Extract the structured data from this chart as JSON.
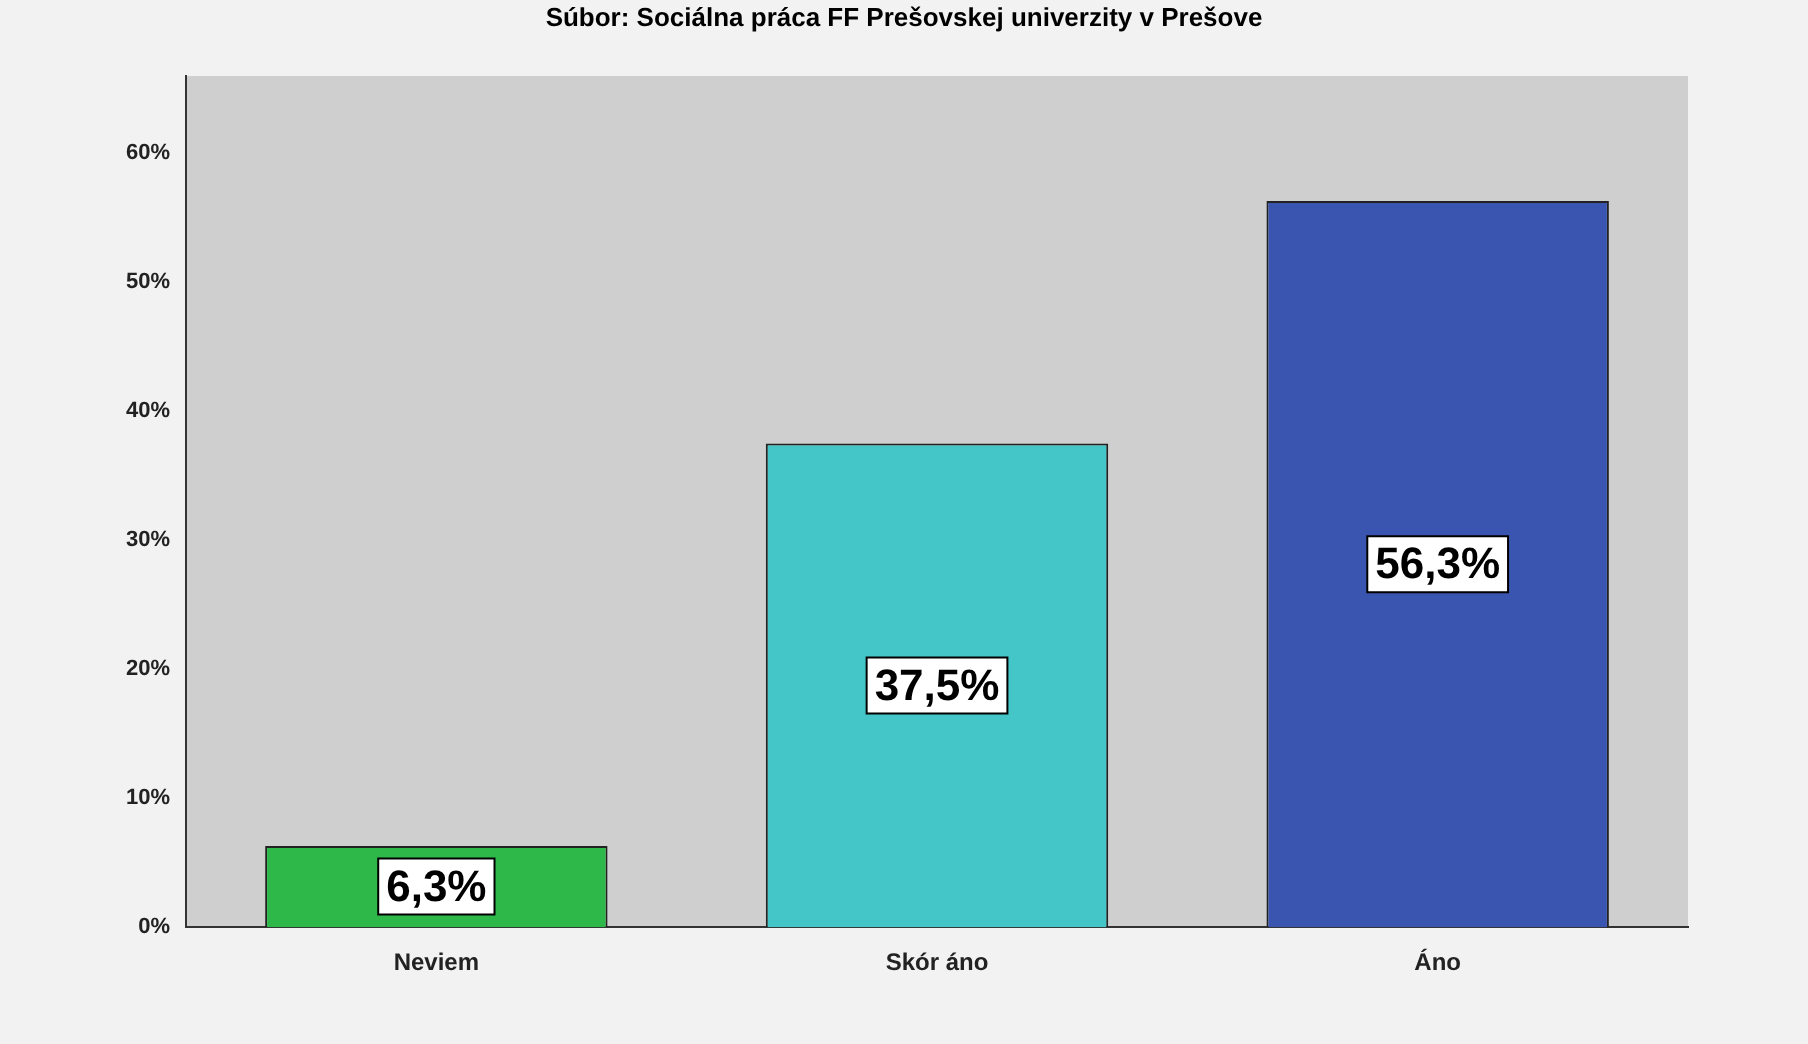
{
  "chart_data": {
    "type": "bar",
    "title": "Súbor: Sociálna práca FF Prešovskej univerzity v Prešove",
    "categories": [
      "Neviem",
      "Skór áno",
      "Áno"
    ],
    "values": [
      6.3,
      37.5,
      56.3
    ],
    "colors": [
      "#2fb84a",
      "#44c6c8",
      "#3a55b0"
    ],
    "value_labels": [
      "6,3%",
      "37,5%",
      "56,3%"
    ],
    "ylim": [
      0,
      66
    ],
    "yticks": [
      {
        "value": 0,
        "label": "0%"
      },
      {
        "value": 10,
        "label": "10%"
      },
      {
        "value": 20,
        "label": "20%"
      },
      {
        "value": 30,
        "label": "30%"
      },
      {
        "value": 40,
        "label": "40%"
      },
      {
        "value": 50,
        "label": "50%"
      },
      {
        "value": 60,
        "label": "60%"
      }
    ],
    "grid": false,
    "legend": false
  }
}
